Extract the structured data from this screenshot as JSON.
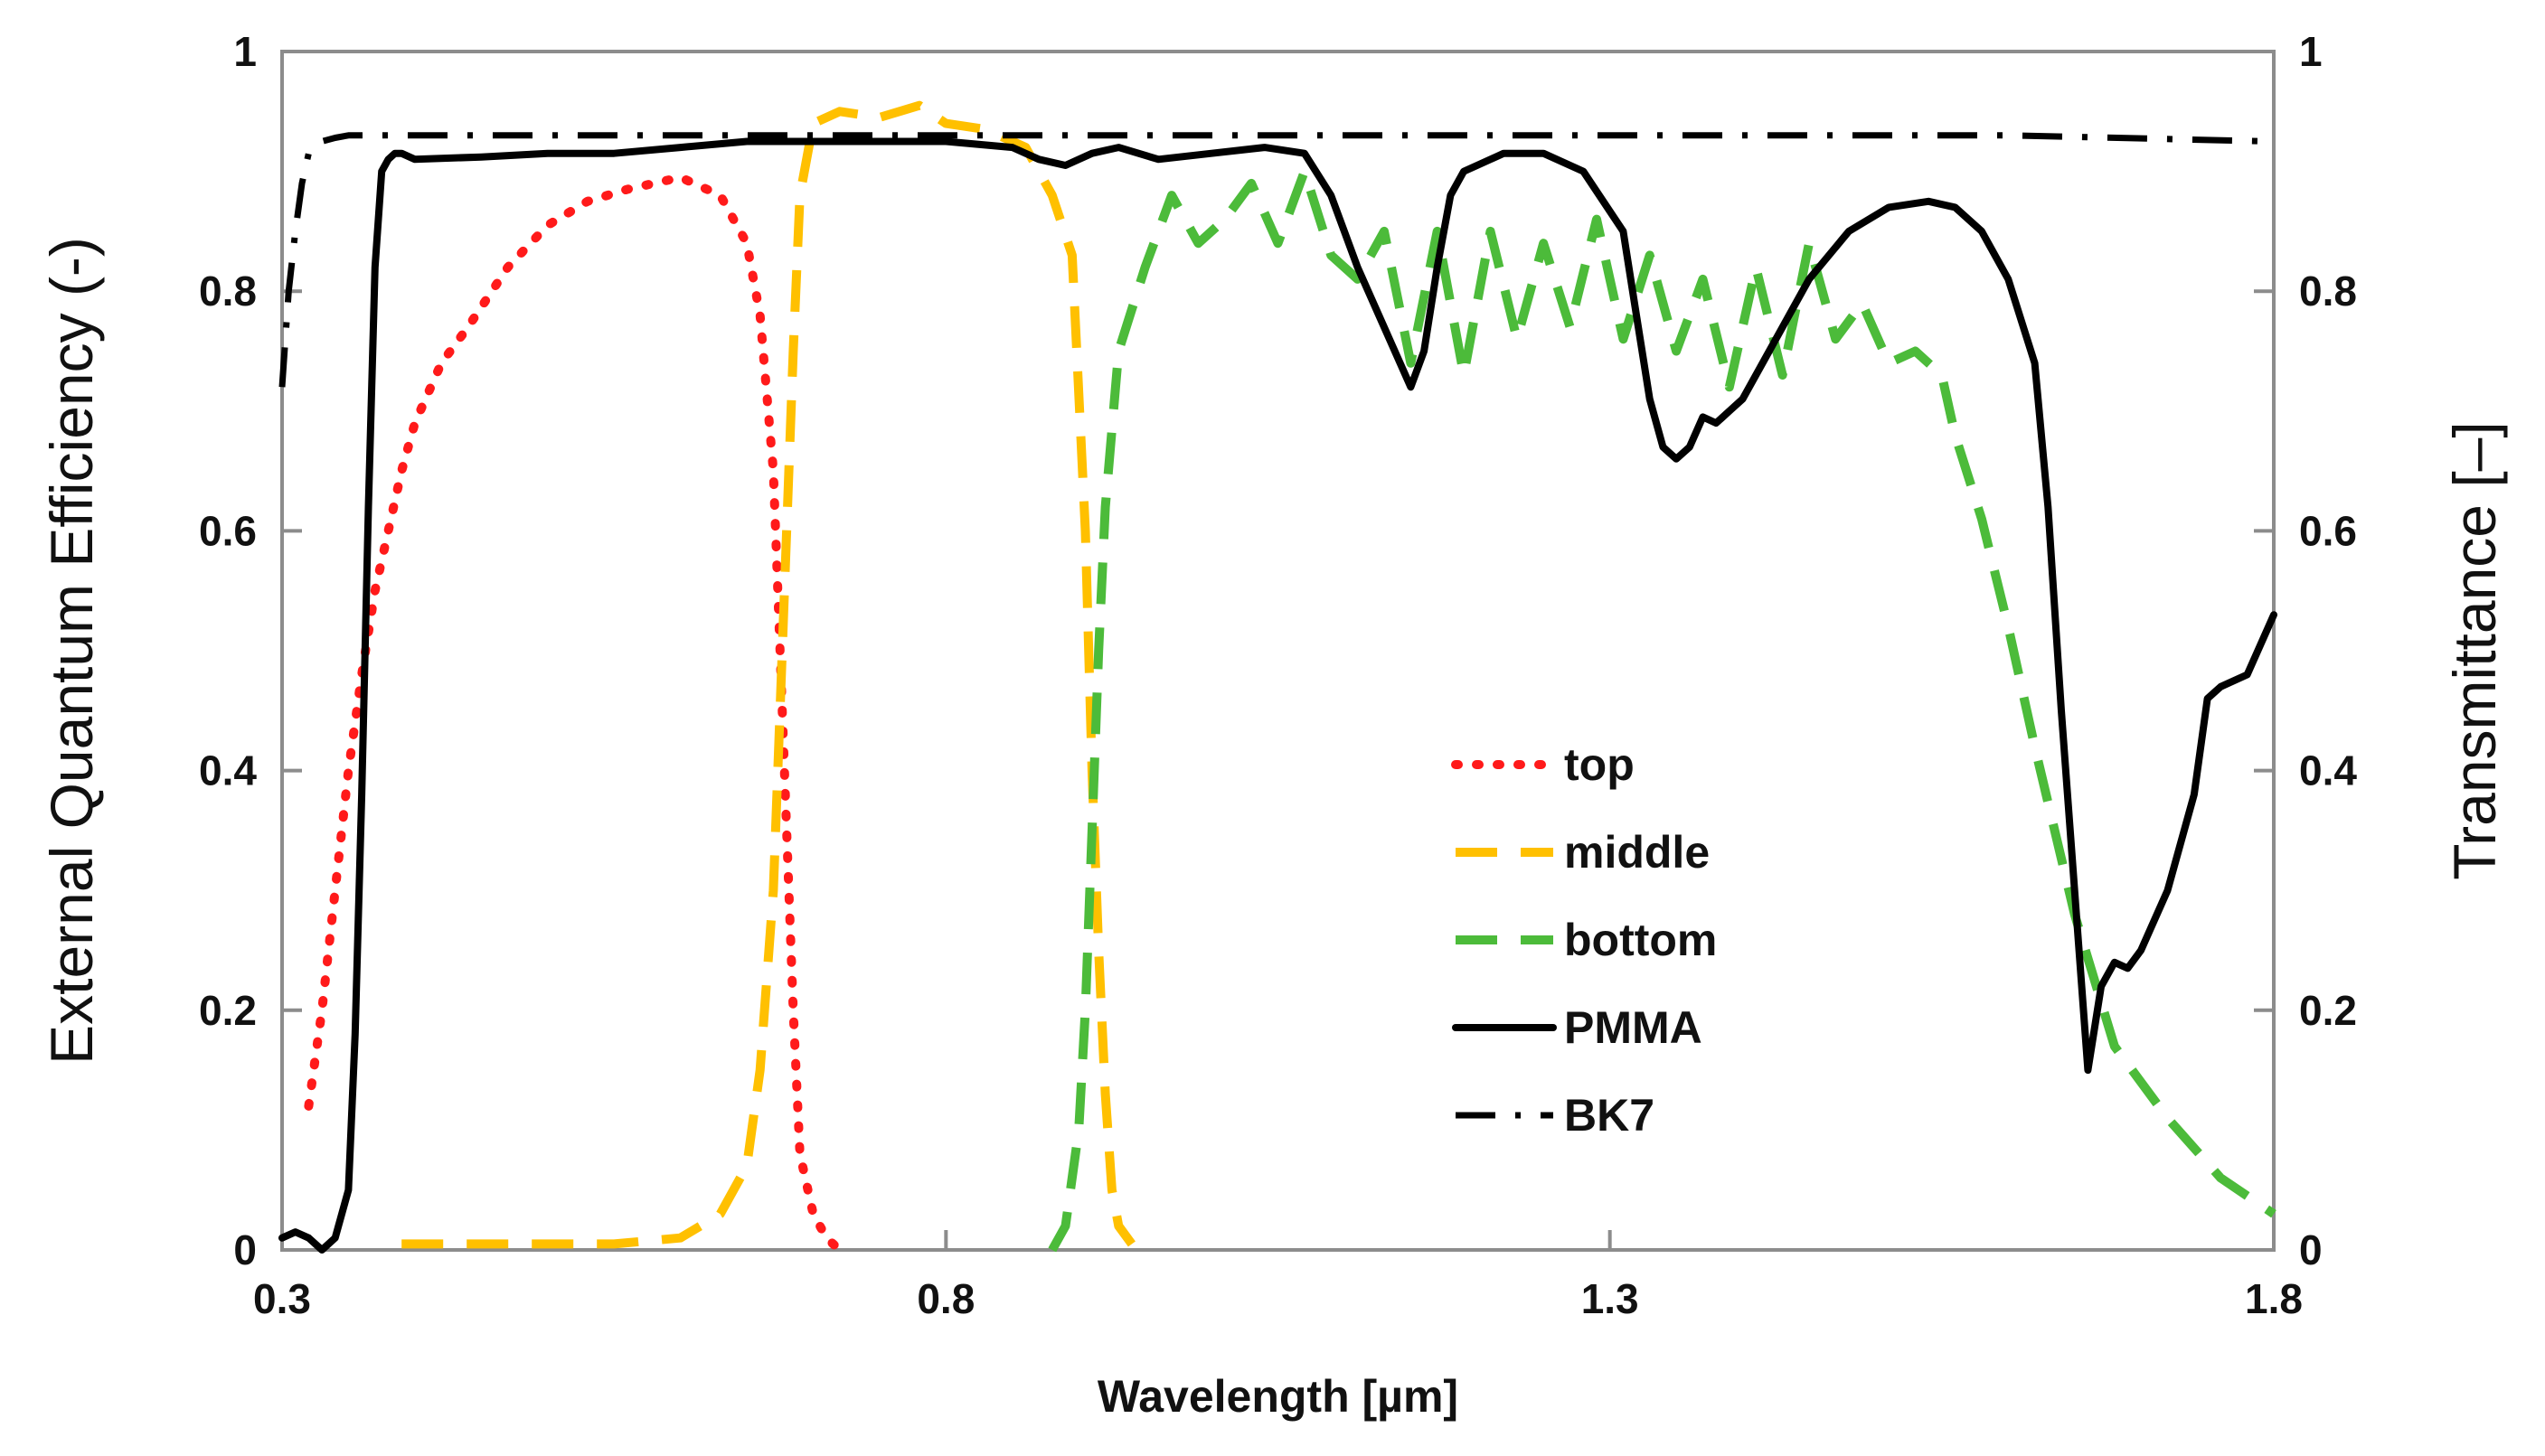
{
  "chart_data": {
    "type": "line",
    "title": "",
    "xlabel": "Wavelength [µm]",
    "ylabel_left": "External Quantum Efficiency (-)",
    "ylabel_right": "Transmittance [–]",
    "xlim": [
      0.3,
      1.8
    ],
    "ylim_left": [
      0,
      1
    ],
    "ylim_right": [
      0,
      1
    ],
    "x_ticks": [
      0.3,
      0.8,
      1.3,
      1.8
    ],
    "x_tick_labels": [
      "0.3",
      "0.8",
      "1.3",
      "1.8"
    ],
    "y_ticks_left": [
      0,
      0.2,
      0.4,
      0.6,
      0.8,
      1
    ],
    "y_tick_labels_left": [
      "0",
      "0.2",
      "0.4",
      "0.6",
      "0.8",
      "1"
    ],
    "y_ticks_right": [
      0,
      0.2,
      0.4,
      0.6,
      0.8,
      1
    ],
    "y_tick_labels_right": [
      "0",
      "0.2",
      "0.4",
      "0.6",
      "0.8",
      "1"
    ],
    "grid": false,
    "legend_position": "center-right",
    "series": [
      {
        "name": "top",
        "axis": "left",
        "color": "#ff1a1a",
        "style": "dotted",
        "x": [
          0.32,
          0.33,
          0.34,
          0.35,
          0.36,
          0.37,
          0.38,
          0.39,
          0.4,
          0.42,
          0.44,
          0.47,
          0.5,
          0.53,
          0.56,
          0.6,
          0.63,
          0.65,
          0.66,
          0.67,
          0.675,
          0.68,
          0.685,
          0.69,
          0.7,
          0.71,
          0.72
        ],
        "y": [
          0.12,
          0.2,
          0.3,
          0.4,
          0.48,
          0.55,
          0.6,
          0.65,
          0.69,
          0.74,
          0.77,
          0.82,
          0.855,
          0.875,
          0.885,
          0.895,
          0.88,
          0.84,
          0.78,
          0.65,
          0.5,
          0.35,
          0.2,
          0.08,
          0.03,
          0.01,
          0.0
        ]
      },
      {
        "name": "middle",
        "axis": "left",
        "color": "#ffc000",
        "style": "dashed",
        "x": [
          0.39,
          0.45,
          0.5,
          0.55,
          0.6,
          0.63,
          0.65,
          0.66,
          0.67,
          0.675,
          0.68,
          0.685,
          0.69,
          0.7,
          0.72,
          0.75,
          0.78,
          0.8,
          0.83,
          0.86,
          0.88,
          0.895,
          0.905,
          0.91,
          0.915,
          0.92,
          0.925,
          0.93,
          0.94
        ],
        "y": [
          0.005,
          0.005,
          0.005,
          0.005,
          0.01,
          0.03,
          0.07,
          0.15,
          0.3,
          0.45,
          0.6,
          0.75,
          0.88,
          0.94,
          0.95,
          0.945,
          0.955,
          0.94,
          0.935,
          0.92,
          0.88,
          0.83,
          0.6,
          0.4,
          0.25,
          0.13,
          0.05,
          0.02,
          0.005
        ]
      },
      {
        "name": "bottom",
        "axis": "left",
        "color": "#4cbb3a",
        "style": "dashed",
        "x": [
          0.88,
          0.89,
          0.9,
          0.905,
          0.91,
          0.915,
          0.92,
          0.93,
          0.95,
          0.97,
          0.99,
          1.01,
          1.03,
          1.05,
          1.07,
          1.09,
          1.11,
          1.13,
          1.15,
          1.17,
          1.19,
          1.21,
          1.23,
          1.25,
          1.27,
          1.29,
          1.31,
          1.33,
          1.35,
          1.37,
          1.39,
          1.41,
          1.43,
          1.45,
          1.47,
          1.49,
          1.51,
          1.53,
          1.55,
          1.56,
          1.58,
          1.6,
          1.62,
          1.65,
          1.68,
          1.72,
          1.76,
          1.8
        ],
        "y": [
          0.0,
          0.02,
          0.1,
          0.2,
          0.35,
          0.5,
          0.62,
          0.75,
          0.82,
          0.88,
          0.84,
          0.86,
          0.89,
          0.84,
          0.9,
          0.83,
          0.81,
          0.85,
          0.74,
          0.85,
          0.73,
          0.85,
          0.76,
          0.84,
          0.77,
          0.86,
          0.76,
          0.83,
          0.75,
          0.81,
          0.72,
          0.82,
          0.73,
          0.84,
          0.76,
          0.79,
          0.74,
          0.75,
          0.73,
          0.68,
          0.61,
          0.52,
          0.42,
          0.28,
          0.17,
          0.11,
          0.06,
          0.03
        ]
      },
      {
        "name": "PMMA",
        "axis": "right",
        "color": "#000000",
        "style": "solid",
        "x": [
          0.3,
          0.31,
          0.32,
          0.33,
          0.34,
          0.35,
          0.355,
          0.36,
          0.365,
          0.37,
          0.375,
          0.38,
          0.385,
          0.39,
          0.4,
          0.45,
          0.5,
          0.55,
          0.6,
          0.65,
          0.7,
          0.75,
          0.8,
          0.85,
          0.87,
          0.89,
          0.91,
          0.93,
          0.96,
          1.0,
          1.04,
          1.07,
          1.09,
          1.11,
          1.13,
          1.15,
          1.16,
          1.17,
          1.18,
          1.19,
          1.2,
          1.22,
          1.25,
          1.28,
          1.31,
          1.32,
          1.33,
          1.34,
          1.35,
          1.36,
          1.37,
          1.38,
          1.39,
          1.4,
          1.42,
          1.45,
          1.48,
          1.51,
          1.54,
          1.56,
          1.58,
          1.6,
          1.62,
          1.63,
          1.64,
          1.65,
          1.66,
          1.67,
          1.68,
          1.69,
          1.7,
          1.72,
          1.74,
          1.75,
          1.76,
          1.78,
          1.8
        ],
        "y": [
          0.01,
          0.015,
          0.01,
          0.0,
          0.01,
          0.05,
          0.18,
          0.38,
          0.62,
          0.82,
          0.9,
          0.91,
          0.915,
          0.915,
          0.91,
          0.912,
          0.915,
          0.915,
          0.92,
          0.925,
          0.925,
          0.925,
          0.925,
          0.92,
          0.91,
          0.905,
          0.915,
          0.92,
          0.91,
          0.915,
          0.92,
          0.915,
          0.88,
          0.82,
          0.77,
          0.72,
          0.75,
          0.82,
          0.88,
          0.9,
          0.905,
          0.915,
          0.915,
          0.9,
          0.85,
          0.78,
          0.71,
          0.67,
          0.66,
          0.67,
          0.695,
          0.69,
          0.7,
          0.71,
          0.75,
          0.81,
          0.85,
          0.87,
          0.875,
          0.87,
          0.85,
          0.81,
          0.74,
          0.62,
          0.45,
          0.3,
          0.15,
          0.22,
          0.24,
          0.235,
          0.25,
          0.3,
          0.38,
          0.46,
          0.47,
          0.48,
          0.53
        ]
      },
      {
        "name": "BK7",
        "axis": "right",
        "color": "#000000",
        "style": "dashdot",
        "x": [
          0.3,
          0.305,
          0.31,
          0.315,
          0.32,
          0.33,
          0.34,
          0.35,
          0.4,
          0.6,
          0.8,
          1.0,
          1.2,
          1.4,
          1.6,
          1.8
        ],
        "y": [
          0.72,
          0.8,
          0.85,
          0.89,
          0.915,
          0.925,
          0.928,
          0.93,
          0.93,
          0.93,
          0.93,
          0.93,
          0.93,
          0.93,
          0.93,
          0.925
        ]
      }
    ]
  }
}
